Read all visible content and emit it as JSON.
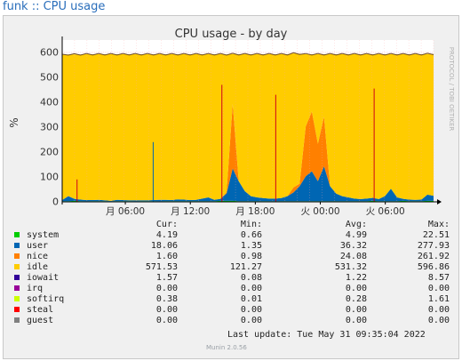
{
  "page_link": "funk :: CPU usage",
  "side_label": "PROTOCOL / TOBI OETIKER",
  "chart_data": {
    "type": "area",
    "title": "CPU usage - by day",
    "ylabel": "%",
    "xlabel": "",
    "ylim": [
      0,
      650
    ],
    "yticks": [
      0,
      100,
      200,
      300,
      400,
      500,
      600
    ],
    "xticks": [
      "月 06:00",
      "月 12:00",
      "月 18:00",
      "火 00:00",
      "火 06:00"
    ],
    "grid": true,
    "stacked_order": [
      "system",
      "user",
      "nice",
      "idle"
    ],
    "series": [
      {
        "name": "system",
        "color": "#00cc00",
        "values": [
          3,
          3,
          4,
          3,
          2,
          3,
          3,
          3,
          2,
          3,
          3,
          3,
          2,
          3,
          3,
          3,
          2,
          3,
          3,
          3,
          3,
          3,
          3,
          3,
          3,
          3,
          4,
          4,
          4,
          3,
          3,
          3,
          3,
          3,
          3,
          3,
          3,
          3,
          3,
          3,
          3,
          3,
          3,
          3,
          3,
          3,
          3,
          3,
          3,
          3,
          3,
          4,
          3,
          3,
          3,
          3,
          4,
          3,
          3,
          3,
          4,
          4
        ]
      },
      {
        "name": "user",
        "color": "#0066b3",
        "values": [
          4,
          20,
          8,
          6,
          5,
          4,
          5,
          3,
          2,
          5,
          4,
          3,
          4,
          3,
          3,
          4,
          6,
          5,
          4,
          7,
          6,
          4,
          5,
          10,
          15,
          5,
          8,
          30,
          130,
          80,
          40,
          20,
          15,
          12,
          10,
          10,
          12,
          20,
          35,
          60,
          100,
          120,
          80,
          140,
          60,
          30,
          20,
          15,
          10,
          8,
          10,
          12,
          8,
          20,
          50,
          15,
          8,
          6,
          5,
          6,
          25,
          20
        ]
      },
      {
        "name": "nice",
        "color": "#ff8000",
        "values": [
          0,
          1,
          0,
          0,
          0,
          0,
          0,
          0,
          0,
          0,
          0,
          0,
          0,
          0,
          0,
          0,
          0,
          0,
          0,
          0,
          0,
          0,
          0,
          0,
          0,
          0,
          0,
          5,
          260,
          0,
          0,
          0,
          0,
          0,
          0,
          0,
          0,
          0,
          20,
          10,
          200,
          240,
          150,
          200,
          0,
          0,
          0,
          0,
          0,
          0,
          0,
          0,
          0,
          0,
          0,
          0,
          0,
          0,
          0,
          0,
          0,
          0
        ]
      },
      {
        "name": "idle",
        "color": "#ffcc00",
        "values": [
          583,
          568,
          580,
          583,
          586,
          586,
          585,
          587,
          589,
          585,
          586,
          587,
          587,
          587,
          587,
          586,
          585,
          585,
          586,
          583,
          584,
          586,
          585,
          580,
          575,
          585,
          581,
          553,
          200,
          510,
          550,
          570,
          575,
          578,
          580,
          580,
          578,
          570,
          538,
          522,
          290,
          230,
          360,
          250,
          530,
          560,
          570,
          575,
          580,
          582,
          580,
          577,
          582,
          570,
          540,
          575,
          581,
          584,
          585,
          584,
          565,
          570
        ]
      }
    ],
    "spikes": [
      {
        "x": 0.04,
        "value": 90,
        "color": "#d0021b"
      },
      {
        "x": 0.245,
        "value": 240,
        "color": "#0066b3"
      },
      {
        "x": 0.43,
        "value": 470,
        "color": "#d0021b"
      },
      {
        "x": 0.575,
        "value": 430,
        "color": "#d0021b"
      },
      {
        "x": 0.84,
        "value": 455,
        "color": "#d0021b"
      }
    ],
    "legend": {
      "headers": [
        "Cur:",
        "Min:",
        "Avg:",
        "Max:"
      ],
      "rows": [
        {
          "name": "system",
          "color": "#00cc00",
          "cur": "4.19",
          "min": "0.66",
          "avg": "4.99",
          "max": "22.51"
        },
        {
          "name": "user",
          "color": "#0066b3",
          "cur": "18.06",
          "min": "1.35",
          "avg": "36.32",
          "max": "277.93"
        },
        {
          "name": "nice",
          "color": "#ff8000",
          "cur": "1.60",
          "min": "0.98",
          "avg": "24.08",
          "max": "261.92"
        },
        {
          "name": "idle",
          "color": "#ffcc00",
          "cur": "571.53",
          "min": "121.27",
          "avg": "531.32",
          "max": "596.86"
        },
        {
          "name": "iowait",
          "color": "#330099",
          "cur": "1.57",
          "min": "0.08",
          "avg": "1.22",
          "max": "8.57"
        },
        {
          "name": "irq",
          "color": "#990099",
          "cur": "0.00",
          "min": "0.00",
          "avg": "0.00",
          "max": "0.00"
        },
        {
          "name": "softirq",
          "color": "#ccff00",
          "cur": "0.38",
          "min": "0.01",
          "avg": "0.28",
          "max": "1.61"
        },
        {
          "name": "steal",
          "color": "#ff0000",
          "cur": "0.00",
          "min": "0.00",
          "avg": "0.00",
          "max": "0.00"
        },
        {
          "name": "guest",
          "color": "#808080",
          "cur": "0.00",
          "min": "0.00",
          "avg": "0.00",
          "max": "0.00"
        }
      ]
    },
    "last_update": "Last update: Tue May 31 09:35:04 2022",
    "footer": "Munin 2.0.56"
  }
}
